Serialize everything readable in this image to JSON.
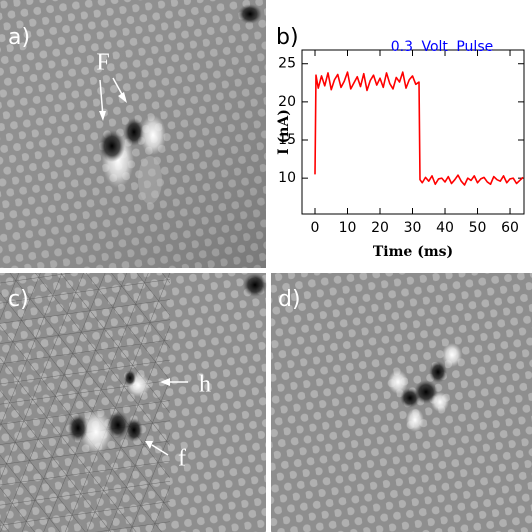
{
  "panels": {
    "a": {
      "label": "a)",
      "annotation": "F"
    },
    "b": {
      "label": "b)"
    },
    "c": {
      "label": "c)",
      "annotations": [
        "h",
        "f"
      ]
    },
    "d": {
      "label": "d)"
    }
  },
  "chart_data": {
    "type": "line",
    "annotation": "0.3 Volt Pulse",
    "xlabel": "Time (ms)",
    "ylabel": "I (nA)",
    "x": [
      0,
      0.3,
      1,
      2,
      3,
      4,
      5,
      6,
      7,
      8,
      9,
      10,
      11,
      12,
      13,
      14,
      15,
      16,
      17,
      18,
      19,
      20,
      21,
      22,
      23,
      24,
      25,
      26,
      27,
      28,
      29,
      30,
      31,
      32,
      32.3,
      33,
      34,
      35,
      36,
      37,
      38,
      39,
      40,
      41,
      42,
      43,
      44,
      45,
      46,
      47,
      48,
      49,
      50,
      51,
      52,
      53,
      54,
      55,
      56,
      57,
      58,
      59,
      60,
      61,
      62,
      63,
      64
    ],
    "series": [
      {
        "color": "#ff0000",
        "values": [
          10.5,
          23.5,
          21.8,
          23.4,
          22.1,
          23.8,
          21.6,
          22.9,
          23.6,
          21.9,
          22.7,
          23.9,
          21.7,
          22.5,
          23.3,
          22.0,
          23.7,
          21.5,
          22.8,
          23.5,
          22.2,
          23.1,
          21.9,
          23.8,
          22.4,
          21.7,
          23.2,
          22.6,
          23.9,
          21.8,
          22.9,
          23.4,
          22.3,
          22.6,
          9.8,
          9.4,
          10.1,
          9.6,
          10.3,
          9.2,
          9.9,
          10.0,
          9.5,
          10.2,
          9.3,
          9.8,
          10.4,
          9.6,
          9.1,
          10.0,
          9.7,
          10.3,
          9.4,
          9.9,
          10.1,
          9.5,
          9.2,
          10.2,
          9.8,
          9.6,
          10.3,
          9.4,
          9.9,
          10.0,
          9.3,
          9.7,
          10.1
        ]
      }
    ],
    "xlim": [
      -4,
      64.3
    ],
    "xticks": [
      0,
      10,
      20,
      30,
      40,
      50,
      60
    ],
    "ylim": [
      5.3,
      26.8
    ],
    "yticks": [
      10,
      15,
      20,
      25
    ]
  }
}
